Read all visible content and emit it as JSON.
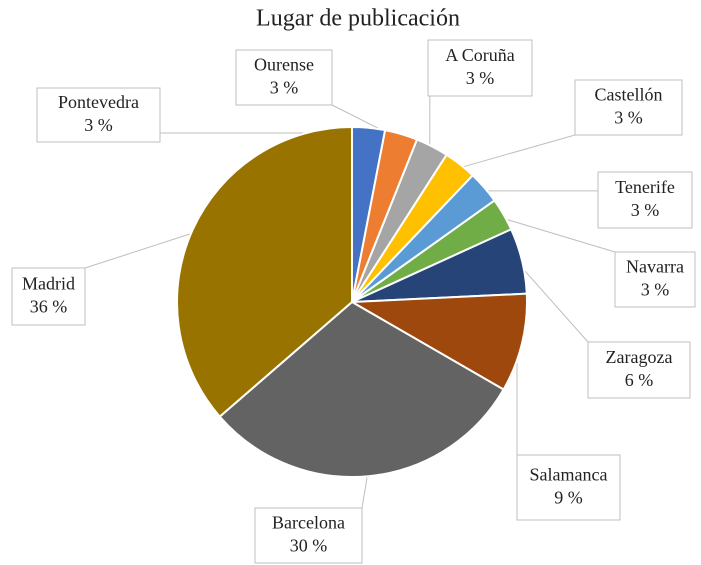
{
  "chart_data": {
    "type": "pie",
    "title": "Lugar de publicación",
    "categories": [
      "Pontevedra",
      "Ourense",
      "A Coruña",
      "Castellón",
      "Tenerife",
      "Navarra",
      "Zaragoza",
      "Salamanca",
      "Barcelona",
      "Madrid"
    ],
    "values": [
      3,
      3,
      3,
      3,
      3,
      3,
      6,
      9,
      30,
      36
    ],
    "value_labels": [
      "3 %",
      "3 %",
      "3 %",
      "3 %",
      "3 %",
      "3 %",
      "6 %",
      "9 %",
      "30 %",
      "36 %"
    ],
    "colors": [
      "#4472c4",
      "#ed7d31",
      "#a5a5a5",
      "#ffc000",
      "#5b9bd5",
      "#70ad47",
      "#264478",
      "#9e480e",
      "#636363",
      "#997300"
    ]
  }
}
